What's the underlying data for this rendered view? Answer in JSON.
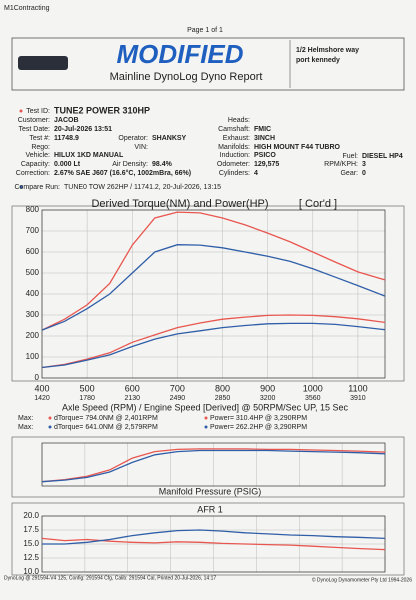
{
  "header": {
    "company": "M1Contracting",
    "page": "Page 1 of 1",
    "title": "MODIFIED",
    "subtitle": "Mainline DynoLog Dyno Report",
    "address": [
      "1/2 Helmshore way",
      "port kennedy"
    ]
  },
  "info": {
    "fields": [
      {
        "label": "Test ID:",
        "value": "TUNE2 POWER 310HP"
      },
      {
        "label": "Customer:",
        "value": "JACOB"
      },
      {
        "label": "Test Date:",
        "value": "20-Jul-2026 13:51"
      },
      {
        "label": "Test #:",
        "value": "11748.9"
      },
      {
        "label": "Rego:"
      },
      {
        "label": "Vehicle:",
        "value": "HILUX 1KD MANUAL"
      },
      {
        "label": "Capacity:",
        "value": "0.000 Lt"
      },
      {
        "label": "Correction:",
        "value": "2.67% SAE J607 (16.6°C, 1002mBra, 66%)"
      },
      {
        "label": "Operator:",
        "value": "SHANKSY"
      },
      {
        "label": "VIN:"
      },
      {
        "label": "Air Density:",
        "value": "98.4%"
      },
      {
        "label": "Heads:"
      },
      {
        "label": "Camshaft:",
        "value": "FMIC"
      },
      {
        "label": "Exhaust:",
        "value": "3INCH"
      },
      {
        "label": "Manifolds:",
        "value": "HIGH MOUNT F44 TUBRO"
      },
      {
        "label": "Induction:",
        "value": "PSICO"
      },
      {
        "label": "Odometer:",
        "value": "129,575"
      },
      {
        "label": "Cylinders:",
        "value": "4"
      },
      {
        "label": "Fuel:",
        "value": "DIESEL HP4"
      },
      {
        "label": "RPM/KPH:",
        "value": "3"
      },
      {
        "label": "Gear:",
        "value": "0"
      }
    ],
    "compare_label": "Compare Run:",
    "compare_value": "TUNE0 TOW 262HP / 11741.2,  20-Jul-2026,   13:15"
  },
  "chart_data": [
    {
      "type": "line",
      "title": "Derived Torque(NM) and Power(HP)",
      "note": "[ Cor'd ]",
      "x_label": "Axle Speed (RPM) / Engine Speed [Derived] @ 50RPM/Sec UP, 15 Sec",
      "x": [
        400,
        450,
        500,
        550,
        600,
        650,
        700,
        750,
        800,
        850,
        900,
        950,
        1000,
        1050,
        1100,
        1160
      ],
      "xlim": [
        400,
        1160
      ],
      "xticks": [
        400,
        500,
        600,
        700,
        800,
        900,
        1000,
        1100
      ],
      "engine_rpm_ticks": [
        1420,
        1780,
        2130,
        2490,
        2850,
        3200,
        3560,
        3910
      ],
      "ylim": [
        0,
        800
      ],
      "yticks": [
        0,
        100,
        200,
        300,
        400,
        500,
        600,
        700,
        800
      ],
      "grid": true,
      "series": [
        {
          "name": "dTorque",
          "color": "#e8564f",
          "values": [
            228,
            280,
            348,
            450,
            633,
            762,
            790,
            786,
            762,
            729,
            690,
            648,
            600,
            552,
            505,
            467
          ]
        },
        {
          "name": "dTorque",
          "color": "#2f5ea8",
          "values": [
            228,
            270,
            330,
            400,
            500,
            600,
            635,
            633,
            620,
            600,
            580,
            555,
            520,
            480,
            440,
            390
          ]
        },
        {
          "name": "Power",
          "color": "#e8564f",
          "values": [
            50,
            65,
            90,
            120,
            170,
            205,
            240,
            262,
            280,
            290,
            298,
            300,
            298,
            292,
            282,
            265
          ]
        },
        {
          "name": "Power",
          "color": "#2f5ea8",
          "values": [
            50,
            62,
            85,
            110,
            150,
            185,
            210,
            225,
            240,
            250,
            258,
            260,
            260,
            255,
            245,
            230
          ]
        }
      ],
      "max_stats": [
        {
          "label": "Max:",
          "torque": "dTorque= 794.0NM @ 2,401RPM",
          "power": "Power= 310.4HP @ 3,290RPM"
        },
        {
          "label": "Max:",
          "torque": "dTorque= 641.0NM @ 2,579RPM",
          "power": "Power= 262.2HP @ 3,290RPM"
        }
      ]
    },
    {
      "type": "line",
      "title": "Manifold Pressure (PSIG)",
      "x": [
        400,
        450,
        500,
        550,
        600,
        650,
        700,
        750,
        800,
        850,
        900,
        950,
        1000,
        1050,
        1100,
        1160
      ],
      "xlim": [
        400,
        1160
      ],
      "ylim": [
        0,
        40
      ],
      "grid": true,
      "series": [
        {
          "name": "Boost",
          "color": "#e8564f",
          "values": [
            4,
            6,
            9,
            15,
            26,
            32,
            34,
            34.5,
            34.5,
            34.5,
            34,
            34,
            33.5,
            33,
            32.5,
            31.5
          ]
        },
        {
          "name": "Boost",
          "color": "#2f5ea8",
          "values": [
            4,
            5.5,
            8,
            13,
            22,
            29,
            32,
            33,
            33,
            33,
            33,
            32.5,
            32,
            31.5,
            31,
            30
          ]
        }
      ]
    },
    {
      "type": "line",
      "title": "AFR 1",
      "x": [
        400,
        450,
        500,
        550,
        600,
        650,
        700,
        750,
        800,
        850,
        900,
        950,
        1000,
        1050,
        1100,
        1160
      ],
      "xlim": [
        400,
        1160
      ],
      "ylim": [
        10,
        20
      ],
      "yticks": [
        {
          "value": 10,
          "label": "10.0"
        },
        {
          "value": 12.5,
          "label": "12.5"
        },
        {
          "value": 15,
          "label": "15.0"
        },
        {
          "value": 17.5,
          "label": "17.5"
        },
        {
          "value": 20,
          "label": "20.0"
        }
      ],
      "grid": true,
      "series": [
        {
          "name": "AFR",
          "color": "#e8564f",
          "values": [
            16,
            15.6,
            15.8,
            15.5,
            15.3,
            15.2,
            15.4,
            15.3,
            15.1,
            15,
            14.9,
            14.8,
            14.6,
            14.4,
            14.2,
            14
          ]
        },
        {
          "name": "AFR",
          "color": "#2f5ea8",
          "values": [
            15,
            15,
            15.3,
            15.8,
            16.5,
            17,
            17.4,
            17.5,
            17.3,
            17,
            16.8,
            16.6,
            16.5,
            16.3,
            16.2,
            16
          ]
        }
      ]
    }
  ],
  "footer": {
    "left": "DynoLog @ 291594-V4 125, Config: 291594 Cfg, Calib: 291594 Cal, Printed 20-Jul-2026, 14:17",
    "right": "© DynoLog Dynamometer Pty Ltd 1994-2026"
  }
}
